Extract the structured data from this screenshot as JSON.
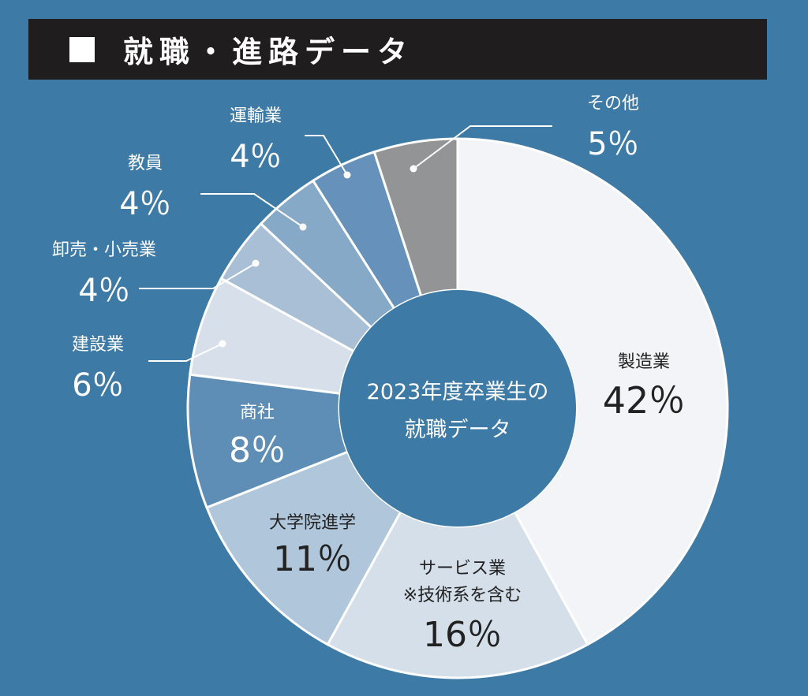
{
  "header": {
    "title": "就職・進路データ",
    "icon": "square-icon"
  },
  "chart_data": {
    "type": "pie",
    "title": "就職・進路データ",
    "center_label": [
      "2023年度卒業生の",
      "就職データ"
    ],
    "unit": "%",
    "slices": [
      {
        "lines": [
          "製造業"
        ],
        "value": 42,
        "value_text": "42％",
        "color": "#f2f4f7"
      },
      {
        "lines": [
          "サービス業",
          "※技術系を含む"
        ],
        "value": 16,
        "value_text": "16％",
        "color": "#d4dfea"
      },
      {
        "lines": [
          "大学院進学"
        ],
        "value": 11,
        "value_text": "11％",
        "color": "#b0c6db"
      },
      {
        "lines": [
          "商社"
        ],
        "value": 8,
        "value_text": "8％",
        "color": "#5e8db6"
      },
      {
        "lines": [
          "建設業"
        ],
        "value": 6,
        "value_text": "6％",
        "color": "#d7e0ea"
      },
      {
        "lines": [
          "卸売・小売業"
        ],
        "value": 4,
        "value_text": "4％",
        "color": "#a9bfd5"
      },
      {
        "lines": [
          "教員"
        ],
        "value": 4,
        "value_text": "4％",
        "color": "#87a9c8"
      },
      {
        "lines": [
          "運輸業"
        ],
        "value": 4,
        "value_text": "4％",
        "color": "#6591bb"
      },
      {
        "lines": [
          "その他"
        ],
        "value": 5,
        "value_text": "5％",
        "color": "#939496"
      }
    ],
    "colors": {
      "background": "#3d7aa6",
      "hole": "#3d7aa6",
      "label_dark": "#222222",
      "label_light": "#ffffff"
    }
  }
}
